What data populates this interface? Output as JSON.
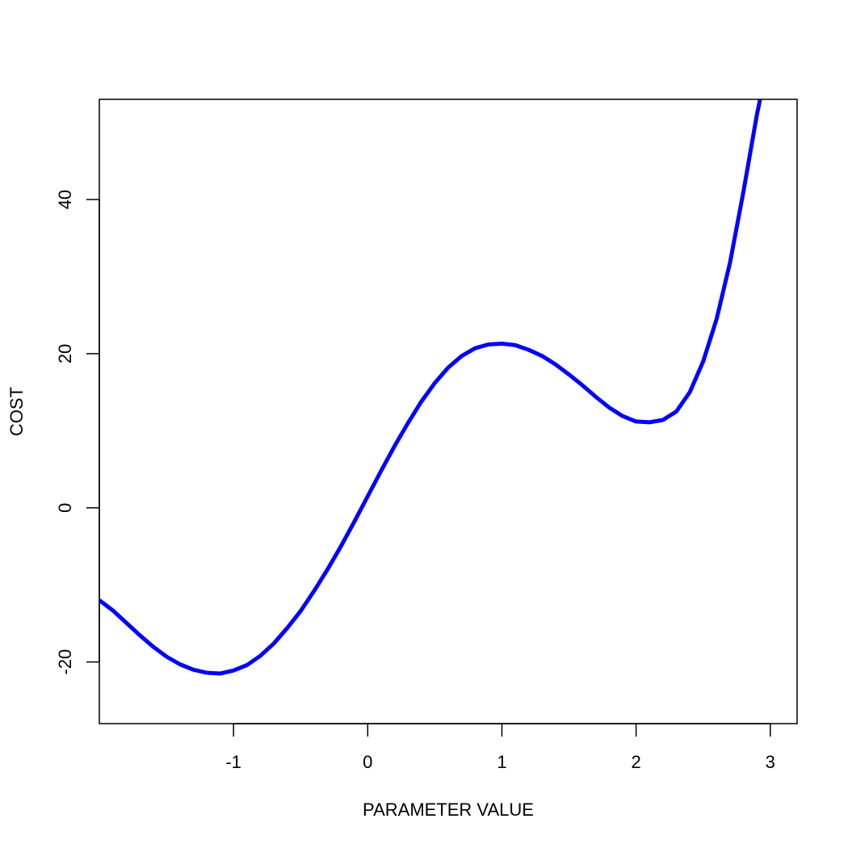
{
  "chart_data": {
    "type": "line",
    "title": "",
    "xlabel": "PARAMETER VALUE",
    "ylabel": "COST",
    "xlim": [
      -2,
      3.2
    ],
    "ylim": [
      -28,
      53
    ],
    "xticks": [
      -1,
      0,
      1,
      2,
      3
    ],
    "xtick_labels": [
      "-1",
      "0",
      "1",
      "2",
      "3"
    ],
    "yticks": [
      -20,
      0,
      20,
      40
    ],
    "ytick_labels": [
      "-20",
      "0",
      "20",
      "40"
    ],
    "grid": false,
    "legend": "none",
    "line_color": "#0000ff",
    "series": [
      {
        "x": [
          -2.0,
          -1.9,
          -1.8,
          -1.7,
          -1.6,
          -1.5,
          -1.4,
          -1.3,
          -1.2,
          -1.1,
          -1.0,
          -0.9,
          -0.8,
          -0.7,
          -0.6,
          -0.5,
          -0.4,
          -0.3,
          -0.2,
          -0.1,
          0.0,
          0.1,
          0.2,
          0.3,
          0.4,
          0.5,
          0.6,
          0.7,
          0.8,
          0.9,
          1.0,
          1.1,
          1.2,
          1.3,
          1.4,
          1.5,
          1.6,
          1.7,
          1.8,
          1.9,
          2.0,
          2.1,
          2.2,
          2.3,
          2.4,
          2.5,
          2.6,
          2.7,
          2.8,
          2.9,
          2.93
        ],
        "values": [
          -12.0,
          -13.3,
          -14.9,
          -16.5,
          -18.0,
          -19.3,
          -20.3,
          -21.0,
          -21.4,
          -21.5,
          -21.1,
          -20.4,
          -19.2,
          -17.6,
          -15.6,
          -13.4,
          -10.8,
          -8.0,
          -5.0,
          -1.8,
          1.5,
          4.8,
          8.0,
          11.0,
          13.8,
          16.2,
          18.2,
          19.7,
          20.7,
          21.2,
          21.3,
          21.1,
          20.5,
          19.7,
          18.6,
          17.3,
          15.9,
          14.4,
          13.0,
          11.9,
          11.2,
          11.1,
          11.4,
          12.5,
          15.0,
          19.0,
          24.5,
          31.8,
          41.0,
          51.0,
          53.5
        ]
      }
    ]
  }
}
